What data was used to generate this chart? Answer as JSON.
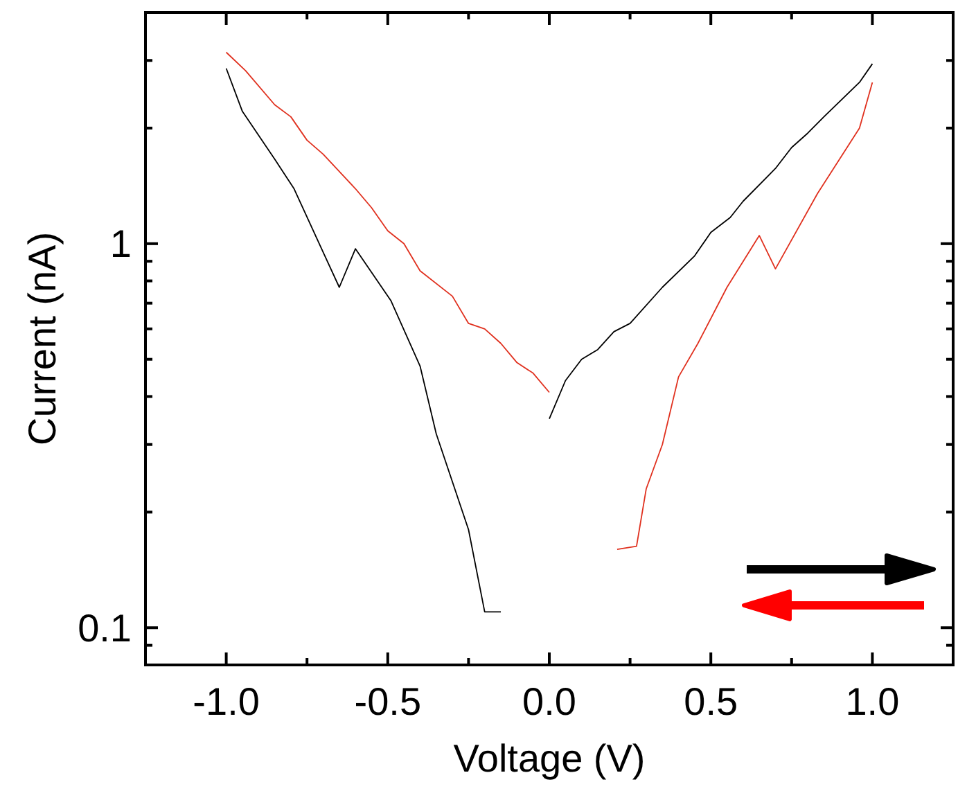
{
  "chart_data": {
    "type": "line",
    "xlabel": "Voltage (V)",
    "ylabel": "Current (nA)",
    "log": "y",
    "xlim": [
      -1.25,
      1.25
    ],
    "ylim": [
      0.08,
      4
    ],
    "xticks": [
      {
        "value": -1,
        "label": "-1.0"
      },
      {
        "value": -0.75,
        "label": null
      },
      {
        "value": -0.5,
        "label": "-0.5"
      },
      {
        "value": -0.25,
        "label": null
      },
      {
        "value": 0,
        "label": "0.0"
      },
      {
        "value": 0.25,
        "label": null
      },
      {
        "value": 0.5,
        "label": "0.5"
      },
      {
        "value": 0.75,
        "label": null
      },
      {
        "value": 1,
        "label": "1.0"
      }
    ],
    "yticks": [
      {
        "value": 0.09,
        "label": null
      },
      0.1,
      {
        "value": 0.2,
        "label": null
      },
      {
        "value": 0.3,
        "label": null
      },
      {
        "value": 0.4,
        "label": null
      },
      {
        "value": 0.5,
        "label": null
      },
      {
        "value": 0.6,
        "label": null
      },
      {
        "value": 0.7,
        "label": null
      },
      {
        "value": 0.8,
        "label": null
      },
      {
        "value": 0.9,
        "label": null
      },
      1,
      {
        "value": 2,
        "label": null
      },
      {
        "value": 3,
        "label": null
      }
    ],
    "grid": false,
    "line_style": "solid",
    "series": [
      {
        "color": "#000000",
        "x": [
          -1.0,
          -0.95,
          -0.85,
          -0.79,
          -0.7,
          -0.65,
          -0.6,
          -0.49,
          -0.4,
          -0.35,
          -0.25,
          -0.2,
          -0.15,
          -0.07,
          0.0,
          0.05,
          0.1,
          0.15,
          0.2,
          0.25,
          0.35,
          0.45,
          0.5,
          0.56,
          0.6,
          0.7,
          0.75,
          0.8,
          0.85,
          0.96,
          1.0
        ],
        "values": [
          2.86,
          2.21,
          1.66,
          1.39,
          0.95,
          0.77,
          0.97,
          0.71,
          0.48,
          0.32,
          0.18,
          0.11,
          0.11,
          null,
          0.35,
          0.44,
          0.5,
          0.53,
          0.59,
          0.62,
          0.77,
          0.93,
          1.07,
          1.17,
          1.29,
          1.57,
          1.78,
          1.94,
          2.14,
          2.63,
          2.94
        ]
      },
      {
        "color": "#e0301e",
        "x": [
          1.0,
          0.96,
          0.83,
          0.7,
          0.65,
          0.55,
          0.46,
          0.4,
          0.35,
          0.3,
          0.27,
          0.25,
          0.21,
          0.1,
          0.0,
          -0.05,
          -0.1,
          -0.15,
          -0.2,
          -0.25,
          -0.3,
          -0.4,
          -0.45,
          -0.5,
          -0.55,
          -0.6,
          -0.7,
          -0.75,
          -0.8,
          -0.85,
          -0.94,
          -1.0
        ],
        "values": [
          2.63,
          2.0,
          1.35,
          0.86,
          1.05,
          0.77,
          0.55,
          0.45,
          0.3,
          0.23,
          0.163,
          0.162,
          0.16,
          null,
          0.41,
          0.46,
          0.49,
          0.55,
          0.6,
          0.62,
          0.73,
          0.85,
          1.0,
          1.08,
          1.24,
          1.39,
          1.71,
          1.86,
          2.14,
          2.3,
          2.82,
          3.15
        ]
      }
    ]
  }
}
